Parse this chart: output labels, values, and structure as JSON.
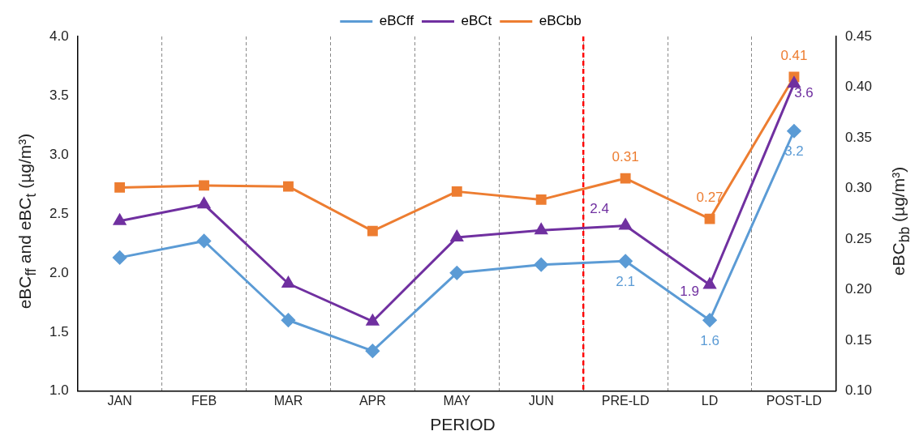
{
  "chart_data": {
    "type": "line",
    "xlabel": "PERIOD",
    "ylabel": "eBC$_{ff}$ and eBC$_{t}$ (µg/m³)",
    "y2label": "eBC$_{bb}$ (µg/m³)",
    "categories": [
      "JAN",
      "FEB",
      "MAR",
      "APR",
      "MAY",
      "JUN",
      "PRE-LD",
      "LD",
      "POST-LD"
    ],
    "series": [
      {
        "name": "eBCff",
        "color": "#5b9bd5",
        "marker": "diamond",
        "values": [
          2.13,
          2.27,
          1.6,
          1.34,
          2.0,
          2.07,
          2.1,
          1.6,
          3.2
        ],
        "value_labels": [
          null,
          null,
          null,
          null,
          null,
          null,
          "2.1",
          "1.6",
          "3.2"
        ]
      },
      {
        "name": "eBCt",
        "color": "#7030a0",
        "marker": "triangle",
        "values": [
          2.44,
          2.58,
          1.91,
          1.59,
          2.3,
          2.36,
          2.4,
          1.9,
          3.6
        ],
        "value_labels": [
          null,
          null,
          null,
          null,
          null,
          null,
          "2.4",
          "1.9",
          "3.6"
        ]
      },
      {
        "name": "eBCbb",
        "color": "#ed7d31",
        "marker": "square",
        "axis": "y2",
        "values": [
          0.301,
          0.303,
          0.302,
          0.258,
          0.297,
          0.289,
          0.31,
          0.27,
          0.41
        ],
        "value_labels": [
          null,
          null,
          null,
          null,
          null,
          null,
          "0.31",
          "0.27",
          "0.41"
        ]
      }
    ],
    "ylim": [
      1.0,
      4.0
    ],
    "yticks": [
      {
        "value": 1,
        "label": "1.0"
      },
      1.5,
      {
        "value": 2,
        "label": "2.0"
      },
      2.5,
      {
        "value": 3,
        "label": "3.0"
      },
      3.5,
      {
        "value": 4,
        "label": "4.0"
      }
    ],
    "y2lim": [
      0.1,
      0.45
    ],
    "y2ticks": [
      {
        "value": 0.1,
        "label": "0.10"
      },
      0.15,
      {
        "value": 0.2,
        "label": "0.20"
      },
      0.25,
      {
        "value": 0.3,
        "label": "0.30"
      },
      0.35,
      {
        "value": 0.4,
        "label": "0.40"
      },
      0.45
    ],
    "ref_lines": [
      {
        "axis": "x",
        "value": "PRE-LD",
        "color": "#ff0000",
        "line_style": "dashed"
      }
    ],
    "grid": "x",
    "legend": "top",
    "line_style": "solid"
  }
}
